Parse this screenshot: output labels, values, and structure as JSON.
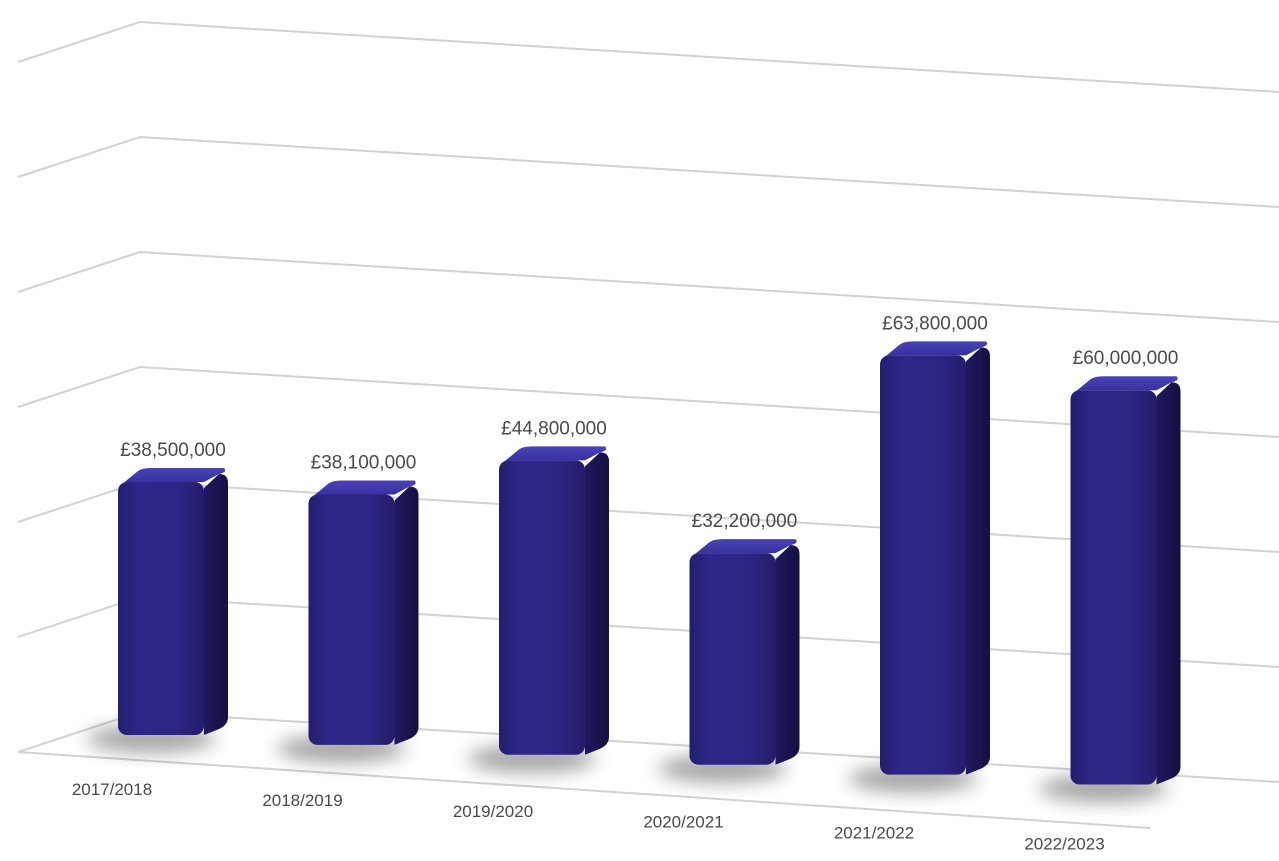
{
  "chart_data": {
    "type": "bar",
    "style": "3d",
    "categories": [
      "2017/2018",
      "2018/2019",
      "2019/2020",
      "2020/2021",
      "2021/2022",
      "2022/2023"
    ],
    "values": [
      38500000,
      38100000,
      44800000,
      32200000,
      63800000,
      60000000
    ],
    "value_labels": [
      "£38,500,000",
      "£38,100,000",
      "£44,800,000",
      "£32,200,000",
      "£63,800,000",
      "£60,000,000"
    ],
    "title": "",
    "xlabel": "",
    "ylabel": "",
    "ylim": [
      0,
      70000000
    ],
    "grid": true,
    "legend": "none",
    "colors": {
      "bar_front": "#2c2580",
      "bar_side": "#1b1655",
      "bar_top": "#3a33a2",
      "grid": "#d2d2d2",
      "label_text": "#4a4a4a"
    }
  }
}
